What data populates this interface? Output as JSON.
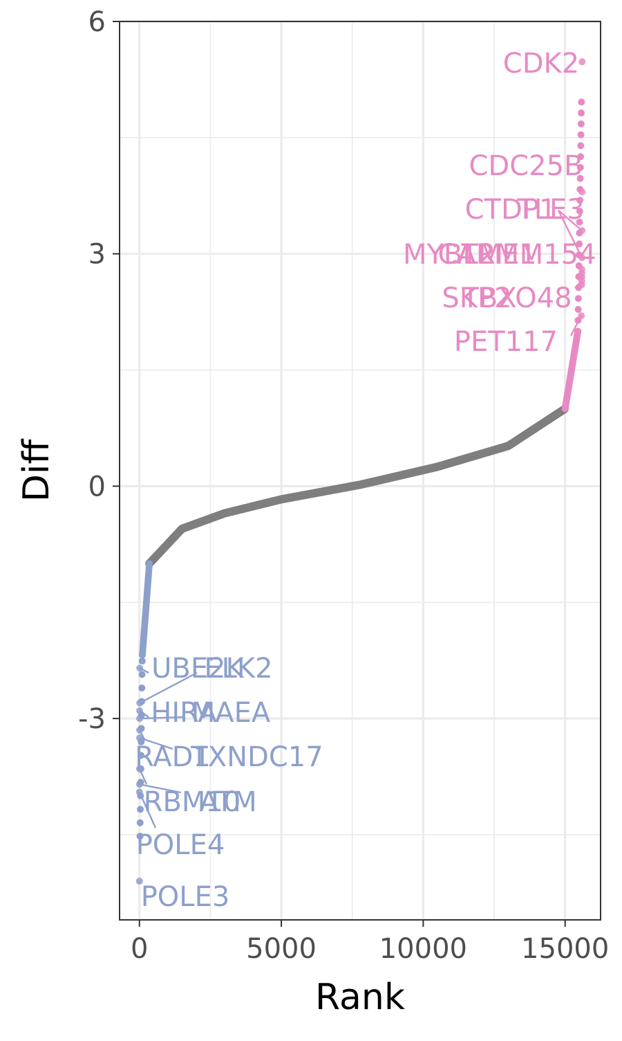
{
  "chart_data": {
    "type": "scatter",
    "title": "",
    "xlabel": "Rank",
    "ylabel": "Diff",
    "xlim": [
      -700,
      16250
    ],
    "ylim": [
      -5.6,
      6.0
    ],
    "x_ticks": [
      0,
      5000,
      10000,
      15000
    ],
    "x_tick_labels": [
      "0",
      "5000",
      "10000",
      "15000"
    ],
    "y_ticks": [
      -3,
      0,
      3,
      6
    ],
    "y_tick_labels": [
      "-3",
      "0",
      "3",
      "6"
    ],
    "grid": true,
    "legend": "none",
    "n_points": 15600,
    "colors": {
      "up": "#e78ac3",
      "down": "#8da0cb",
      "neutral": "#7f7f7f",
      "grid": "#ebebeb",
      "axis": "#333333"
    },
    "curve_summary": [
      {
        "rank": 0,
        "diff": -5.1
      },
      {
        "rank": 100,
        "diff": -2.2
      },
      {
        "rank": 350,
        "diff": -1.0
      },
      {
        "rank": 1500,
        "diff": -0.55
      },
      {
        "rank": 3000,
        "diff": -0.35
      },
      {
        "rank": 5000,
        "diff": -0.17
      },
      {
        "rank": 7800,
        "diff": 0.02
      },
      {
        "rank": 10500,
        "diff": 0.25
      },
      {
        "rank": 13000,
        "diff": 0.52
      },
      {
        "rank": 15000,
        "diff": 1.0
      },
      {
        "rank": 15450,
        "diff": 2.0
      },
      {
        "rank": 15599,
        "diff": 5.5
      }
    ],
    "highlighted_points": [
      {
        "label": "CDK2",
        "rank": 15599,
        "diff": 5.48,
        "group": "up"
      },
      {
        "label": "CDC25B",
        "rank": 15598,
        "diff": 3.8,
        "group": "up"
      },
      {
        "label": "CTDP1",
        "rank": 15596,
        "diff": 3.3,
        "group": "up"
      },
      {
        "label": "TLE3",
        "rank": 15594,
        "diff": 2.95,
        "group": "up"
      },
      {
        "label": "MYBL2",
        "rank": 15592,
        "diff": 2.8,
        "group": "up"
      },
      {
        "label": "CARM1",
        "rank": 15590,
        "diff": 2.75,
        "group": "up"
      },
      {
        "label": "TMEM154",
        "rank": 15588,
        "diff": 2.7,
        "group": "up"
      },
      {
        "label": "SKP2",
        "rank": 15586,
        "diff": 2.65,
        "group": "up"
      },
      {
        "label": "TBXO48",
        "rank": 15584,
        "diff": 2.6,
        "group": "up"
      },
      {
        "label": "PET117",
        "rank": 15570,
        "diff": 2.2,
        "group": "up"
      },
      {
        "label": "UBE2K",
        "rank": 12,
        "diff": -2.35,
        "group": "down"
      },
      {
        "label": "ELK2",
        "rank": 10,
        "diff": -2.8,
        "group": "down"
      },
      {
        "label": "HIRA",
        "rank": 8,
        "diff": -2.9,
        "group": "down"
      },
      {
        "label": "MAEA",
        "rank": 7,
        "diff": -3.0,
        "group": "down"
      },
      {
        "label": "RAD1",
        "rank": 6,
        "diff": -3.15,
        "group": "down"
      },
      {
        "label": "TXNDC17",
        "rank": 5,
        "diff": -3.25,
        "group": "down"
      },
      {
        "label": "RBM10",
        "rank": 4,
        "diff": -3.65,
        "group": "down"
      },
      {
        "label": "ATM",
        "rank": 3,
        "diff": -3.85,
        "group": "down"
      },
      {
        "label": "POLE4",
        "rank": 2,
        "diff": -3.95,
        "group": "down"
      },
      {
        "label": "POLE3",
        "rank": 1,
        "diff": -5.1,
        "group": "down"
      }
    ]
  },
  "labels_layout_hint": "labels repelled; see script"
}
